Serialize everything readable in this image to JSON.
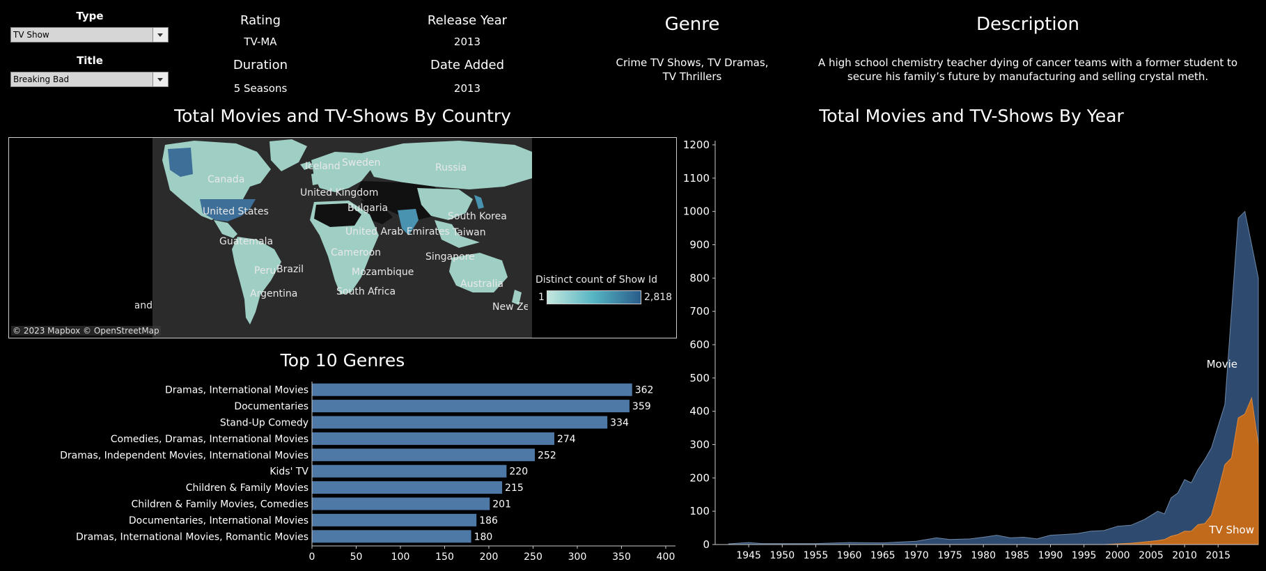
{
  "filters": {
    "type": {
      "label": "Type",
      "value": "TV Show"
    },
    "title": {
      "label": "Title",
      "value": "Breaking Bad"
    }
  },
  "details": {
    "rating": {
      "label": "Rating",
      "value": "TV-MA"
    },
    "release_year": {
      "label": "Release Year",
      "value": "2013"
    },
    "duration": {
      "label": "Duration",
      "value": "5 Seasons"
    },
    "date_added": {
      "label": "Date Added",
      "value": "2013"
    },
    "genre": {
      "label": "Genre",
      "value": "Crime TV Shows, TV Dramas, TV Thrillers"
    },
    "description": {
      "label": "Description",
      "value": "A high school chemistry teacher dying of cancer teams with a former student to secure his family’s future by manufacturing and selling crystal meth."
    }
  },
  "map": {
    "title": "Total Movies and TV-Shows By Country",
    "attribution": "© 2023 Mapbox © OpenStreetMap",
    "legend_title": "Distinct count of Show Id",
    "legend_min": "1",
    "legend_max": "2,818",
    "labels": [
      "Canada",
      "Iceland",
      "Sweden",
      "Russia",
      "United Kingdom",
      "United States",
      "Bulgaria",
      "South Korea",
      "United Arab Emirates",
      "Taiwan",
      "Guatemala",
      "Cameroon",
      "Singapore",
      "Peru",
      "Brazil",
      "Mozambique",
      "Australia",
      "Argentina",
      "South Africa",
      "New Zealand",
      "New Zealand"
    ],
    "colors": {
      "ocean": "#2b2b2b",
      "land": "#9fcfc4",
      "no_data": "#111111",
      "high": "#3d6f98",
      "mid": "#4a93b0"
    }
  },
  "chart_data": [
    {
      "type": "bar",
      "title": "Top 10 Genres",
      "categories": [
        "Dramas, International Movies",
        "Documentaries",
        "Stand-Up Comedy",
        "Comedies, Dramas, International Movies",
        "Dramas, Independent Movies, International Movies",
        "Kids' TV",
        "Children & Family Movies",
        "Children & Family Movies, Comedies",
        "Documentaries, International Movies",
        "Dramas, International Movies, Romantic Movies"
      ],
      "values": [
        362,
        359,
        334,
        274,
        252,
        220,
        215,
        201,
        186,
        180
      ],
      "xlim": [
        0,
        400
      ],
      "xticks": [
        0,
        50,
        100,
        150,
        200,
        250,
        300,
        350,
        400
      ],
      "color": "#4e79a7",
      "orientation": "horizontal"
    },
    {
      "type": "area",
      "title": "Total Movies and TV-Shows By Year",
      "ylim": [
        0,
        1200
      ],
      "yticks": [
        0,
        100,
        200,
        300,
        400,
        500,
        600,
        700,
        800,
        900,
        1000,
        1100,
        1200
      ],
      "xticks": [
        1945,
        1950,
        1955,
        1960,
        1965,
        1970,
        1975,
        1980,
        1985,
        1990,
        1995,
        2000,
        2005,
        2010,
        2015
      ],
      "x": [
        1942,
        1945,
        1947,
        1955,
        1960,
        1965,
        1970,
        1973,
        1975,
        1978,
        1980,
        1982,
        1984,
        1986,
        1988,
        1990,
        1992,
        1994,
        1996,
        1998,
        2000,
        2002,
        2004,
        2006,
        2007,
        2008,
        2009,
        2010,
        2011,
        2012,
        2013,
        2014,
        2015,
        2016,
        2017,
        2018,
        2019,
        2020,
        2021
      ],
      "series": [
        {
          "name": "Movie",
          "color": "#2e4a6e",
          "values": [
            2,
            6,
            3,
            3,
            6,
            5,
            10,
            20,
            15,
            17,
            22,
            28,
            20,
            22,
            17,
            28,
            30,
            33,
            40,
            42,
            55,
            58,
            75,
            100,
            92,
            140,
            155,
            195,
            185,
            225,
            255,
            290,
            355,
            420,
            700,
            980,
            1000,
            900,
            800
          ]
        },
        {
          "name": "TV Show",
          "color": "#c26a1b",
          "values": [
            0,
            0,
            0,
            0,
            0,
            0,
            0,
            0,
            0,
            0,
            0,
            0,
            0,
            0,
            0,
            0,
            0,
            0,
            0,
            0,
            2,
            4,
            8,
            12,
            15,
            25,
            30,
            40,
            40,
            60,
            63,
            88,
            160,
            240,
            260,
            380,
            392,
            440,
            300
          ]
        }
      ]
    }
  ]
}
